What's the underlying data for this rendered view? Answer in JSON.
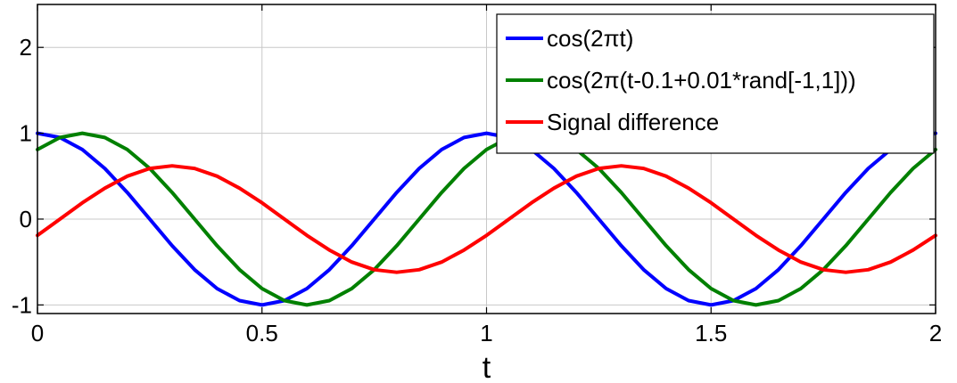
{
  "chart_data": {
    "type": "line",
    "title": "",
    "xlabel": "t",
    "ylabel": "",
    "xlim": [
      0,
      2
    ],
    "ylim": [
      -1.1,
      2.5
    ],
    "xticks": [
      0,
      0.5,
      1,
      1.5,
      2
    ],
    "xtick_labels": [
      "0",
      "0.5",
      "1",
      "1.5",
      "2"
    ],
    "yticks": [
      -1,
      0,
      1,
      2
    ],
    "ytick_labels": [
      "-1",
      "0",
      "1",
      "2"
    ],
    "grid": true,
    "legend_position": "top-right",
    "series": [
      {
        "name": "cos(2πt)",
        "color": "#0000ff",
        "x": [
          0,
          0.05,
          0.1,
          0.15,
          0.2,
          0.25,
          0.3,
          0.35,
          0.4,
          0.45,
          0.5,
          0.55,
          0.6,
          0.65,
          0.7,
          0.75,
          0.8,
          0.85,
          0.9,
          0.95,
          1,
          1.05,
          1.1,
          1.15,
          1.2,
          1.25,
          1.3,
          1.35,
          1.4,
          1.45,
          1.5,
          1.55,
          1.6,
          1.65,
          1.7,
          1.75,
          1.8,
          1.85,
          1.9,
          1.95,
          2
        ],
        "y": [
          1,
          0.95,
          0.81,
          0.59,
          0.31,
          0,
          -0.31,
          -0.59,
          -0.81,
          -0.95,
          -1,
          -0.95,
          -0.81,
          -0.59,
          -0.31,
          0,
          0.31,
          0.59,
          0.81,
          0.95,
          1,
          0.95,
          0.81,
          0.59,
          0.31,
          0,
          -0.31,
          -0.59,
          -0.81,
          -0.95,
          -1,
          -0.95,
          -0.81,
          -0.59,
          -0.31,
          0,
          0.31,
          0.59,
          0.81,
          0.95,
          1
        ]
      },
      {
        "name": "cos(2π(t-0.1+0.01*rand[-1,1]))",
        "color": "#008000",
        "x": [
          0,
          0.05,
          0.1,
          0.15,
          0.2,
          0.25,
          0.3,
          0.35,
          0.4,
          0.45,
          0.5,
          0.55,
          0.6,
          0.65,
          0.7,
          0.75,
          0.8,
          0.85,
          0.9,
          0.95,
          1,
          1.05,
          1.1,
          1.15,
          1.2,
          1.25,
          1.3,
          1.35,
          1.4,
          1.45,
          1.5,
          1.55,
          1.6,
          1.65,
          1.7,
          1.75,
          1.8,
          1.85,
          1.9,
          1.95,
          2
        ],
        "y": [
          0.81,
          0.95,
          1,
          0.95,
          0.81,
          0.59,
          0.31,
          0,
          -0.31,
          -0.59,
          -0.81,
          -0.95,
          -1,
          -0.95,
          -0.81,
          -0.59,
          -0.31,
          0,
          0.31,
          0.59,
          0.81,
          0.95,
          1,
          0.95,
          0.81,
          0.59,
          0.31,
          0,
          -0.31,
          -0.59,
          -0.81,
          -0.95,
          -1,
          -0.95,
          -0.81,
          -0.59,
          -0.31,
          0,
          0.31,
          0.59,
          0.81
        ]
      },
      {
        "name": "Signal difference",
        "color": "#ff0000",
        "x": [
          0,
          0.05,
          0.1,
          0.15,
          0.2,
          0.25,
          0.3,
          0.35,
          0.4,
          0.45,
          0.5,
          0.55,
          0.6,
          0.65,
          0.7,
          0.75,
          0.8,
          0.85,
          0.9,
          0.95,
          1,
          1.05,
          1.1,
          1.15,
          1.2,
          1.25,
          1.3,
          1.35,
          1.4,
          1.45,
          1.5,
          1.55,
          1.6,
          1.65,
          1.7,
          1.75,
          1.8,
          1.85,
          1.9,
          1.95,
          2
        ],
        "y": [
          -0.19,
          0,
          0.19,
          0.36,
          0.5,
          0.59,
          0.62,
          0.59,
          0.5,
          0.36,
          0.19,
          0,
          -0.19,
          -0.36,
          -0.5,
          -0.59,
          -0.62,
          -0.59,
          -0.5,
          -0.36,
          -0.19,
          0,
          0.19,
          0.36,
          0.5,
          0.59,
          0.62,
          0.59,
          0.5,
          0.36,
          0.19,
          0,
          -0.19,
          -0.36,
          -0.5,
          -0.59,
          -0.62,
          -0.59,
          -0.5,
          -0.36,
          -0.19
        ]
      }
    ]
  }
}
